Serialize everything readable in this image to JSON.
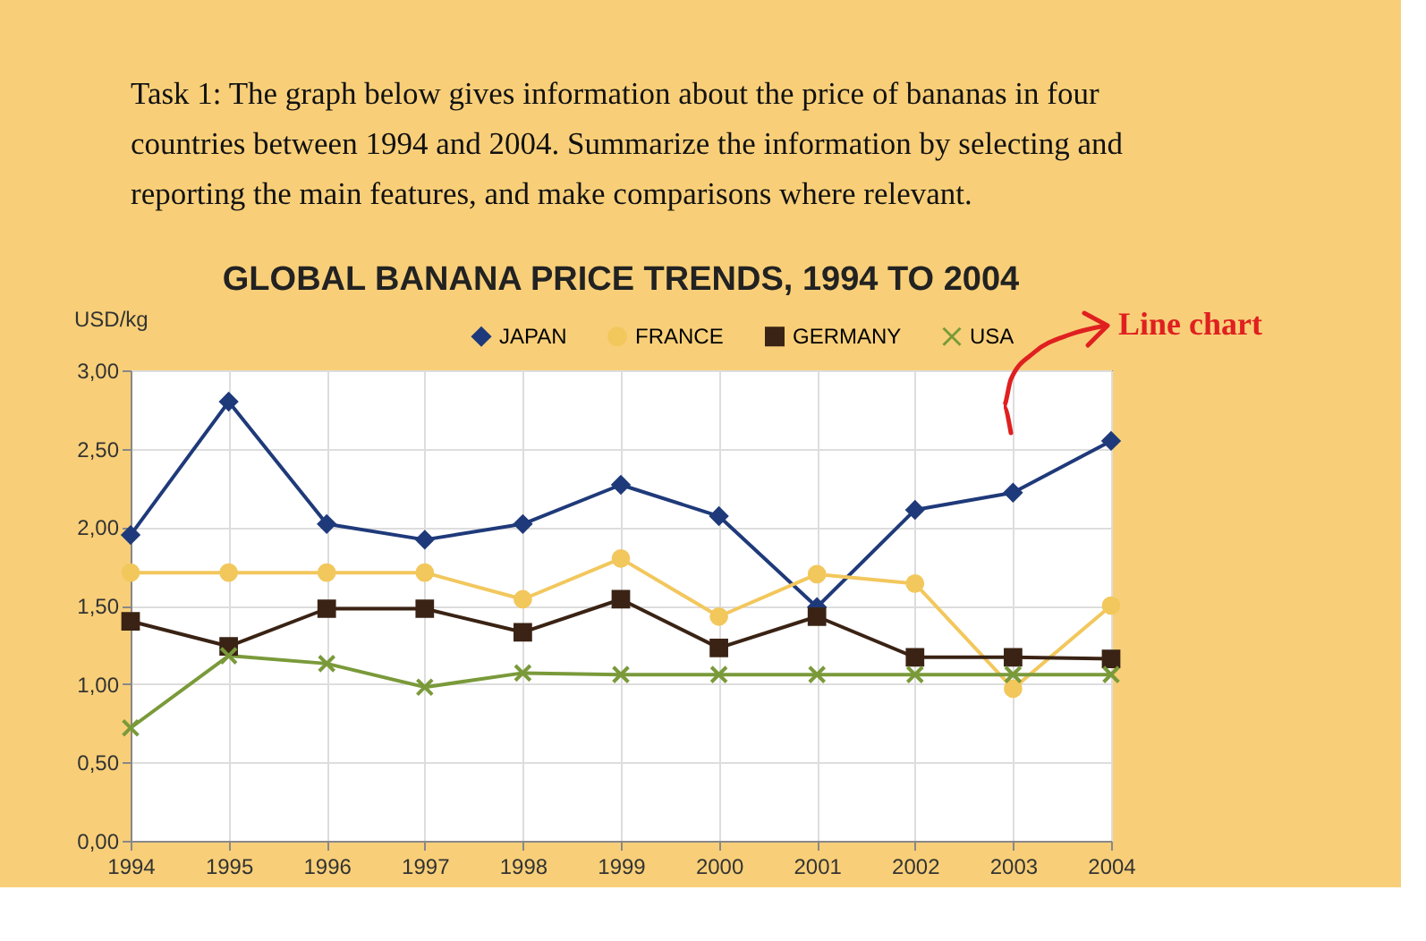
{
  "chart_data": {
    "type": "line",
    "title": "GLOBAL BANANA PRICE TRENDS, 1994 TO 2004",
    "ylabel": "USD/kg",
    "annotations": [
      "Task 1: The graph below gives information about the price of bananas in four countries between 1994 and 2004. Summarize the information by selecting and reporting the main features, and make comparisons where relevant.",
      "Line chart"
    ],
    "categories": [
      "1994",
      "1995",
      "1996",
      "1997",
      "1998",
      "1999",
      "2000",
      "2001",
      "2002",
      "2003",
      "2004"
    ],
    "series": [
      {
        "name": "JAPAN",
        "color": "#1f3a7a",
        "marker": "diamond",
        "values": [
          1.95,
          2.8,
          2.02,
          1.92,
          2.02,
          2.27,
          2.07,
          1.49,
          2.11,
          2.22,
          2.55
        ]
      },
      {
        "name": "FRANCE",
        "color": "#f2c75c",
        "marker": "circle",
        "values": [
          1.71,
          1.71,
          1.71,
          1.71,
          1.54,
          1.8,
          1.43,
          1.7,
          1.64,
          0.97,
          1.5
        ]
      },
      {
        "name": "GERMANY",
        "color": "#3a2314",
        "marker": "square",
        "values": [
          1.4,
          1.24,
          1.48,
          1.48,
          1.33,
          1.54,
          1.23,
          1.43,
          1.17,
          1.17,
          1.16
        ]
      },
      {
        "name": "USA",
        "color": "#7a9a3a",
        "marker": "cross",
        "values": [
          0.72,
          1.18,
          1.13,
          0.98,
          1.07,
          1.06,
          1.06,
          1.06,
          1.06,
          1.06,
          1.06
        ]
      }
    ],
    "ylim": [
      0,
      3
    ],
    "yticks": [
      {
        "value": 0,
        "label": "0,00"
      },
      {
        "value": 0.5,
        "label": "0,50"
      },
      {
        "value": 1,
        "label": "1,00"
      },
      {
        "value": 1.5,
        "label": "1,50"
      },
      {
        "value": 2,
        "label": "2,00"
      },
      {
        "value": 2.5,
        "label": "2,50"
      },
      {
        "value": 3,
        "label": "3,00"
      }
    ],
    "grid": true,
    "legend": "top",
    "line_style": "solid"
  }
}
